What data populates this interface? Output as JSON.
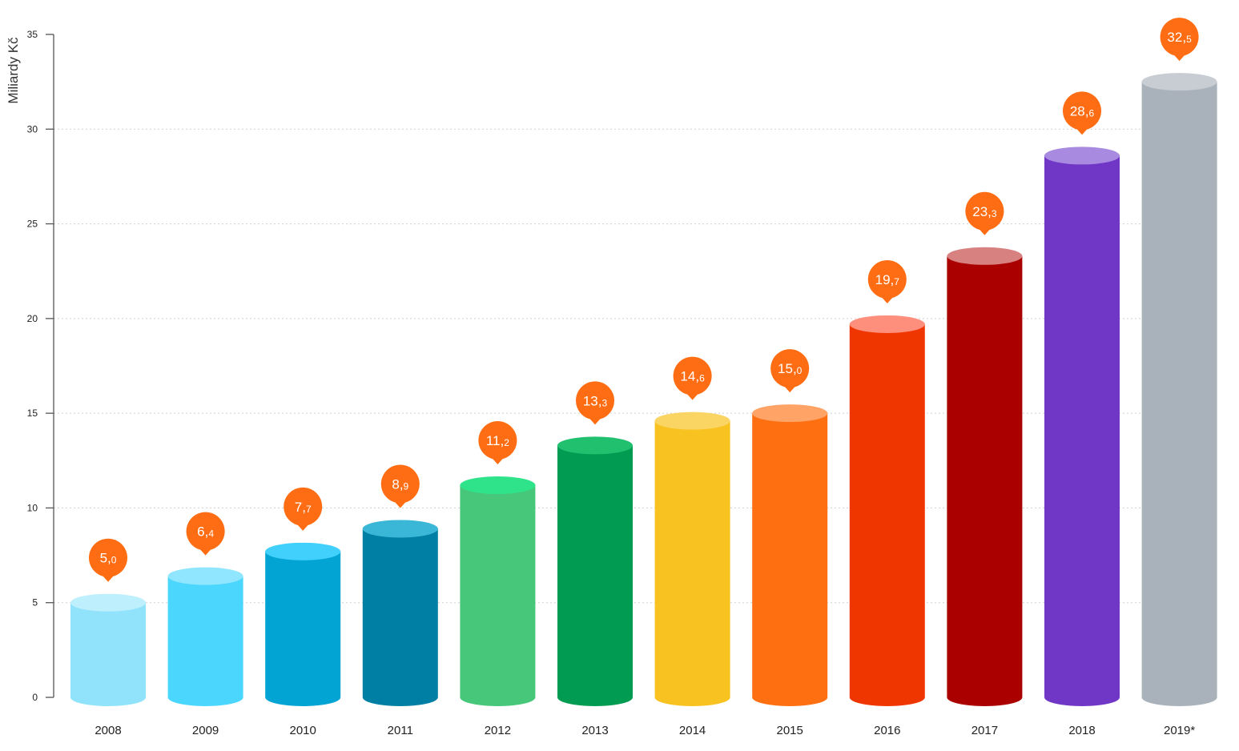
{
  "chart_data": {
    "type": "bar",
    "style": "cylinder",
    "title": "",
    "xlabel": "",
    "ylabel": "Miliardy Kč",
    "ylim": [
      0,
      35
    ],
    "yticks": [
      "0",
      "5",
      "10",
      "15",
      "20",
      "25",
      "30",
      "35"
    ],
    "grid": "horizontal dotted",
    "categories": [
      "2008",
      "2009",
      "2010",
      "2011",
      "2012",
      "2013",
      "2014",
      "2015",
      "2016",
      "2017",
      "2018",
      "2019*"
    ],
    "values": [
      5.0,
      6.4,
      7.7,
      8.9,
      11.2,
      13.3,
      14.6,
      15.0,
      19.7,
      23.3,
      28.6,
      32.5
    ],
    "value_labels": [
      {
        "whole": "5,",
        "decimal": "0"
      },
      {
        "whole": "6,",
        "decimal": "4"
      },
      {
        "whole": "7,",
        "decimal": "7"
      },
      {
        "whole": "8,",
        "decimal": "9"
      },
      {
        "whole": "11,",
        "decimal": "2"
      },
      {
        "whole": "13,",
        "decimal": "3"
      },
      {
        "whole": "14,",
        "decimal": "6"
      },
      {
        "whole": "15,",
        "decimal": "0"
      },
      {
        "whole": "19,",
        "decimal": "7"
      },
      {
        "whole": "23,",
        "decimal": "3"
      },
      {
        "whole": "28,",
        "decimal": "6"
      },
      {
        "whole": "32,",
        "decimal": "5"
      }
    ],
    "bar_colors": [
      "#91e3fb",
      "#4ad6fd",
      "#02a4d4",
      "#007fa4",
      "#46c77a",
      "#019c52",
      "#f8c220",
      "#fe6f12",
      "#f03600",
      "#ab0000",
      "#7037c6",
      "#a9b2ba"
    ],
    "top_colors": [
      "#bdeffd",
      "#8fe6fe",
      "#40d0fb",
      "#3ab6d6",
      "#2fe38b",
      "#20c06f",
      "#fbd564",
      "#ffa466",
      "#ff8f7d",
      "#d78181",
      "#a88ae0",
      "#c8cdd3"
    ],
    "label_bubble_color": "#fe6d13"
  }
}
